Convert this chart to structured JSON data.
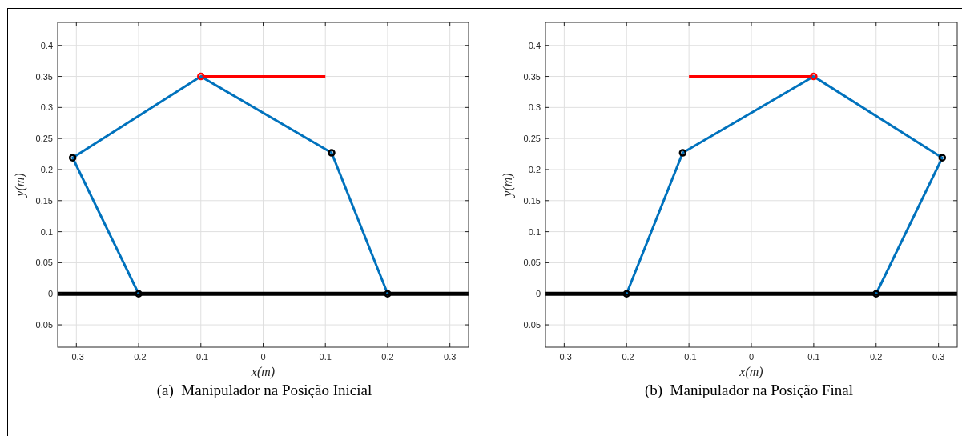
{
  "chart_data": [
    {
      "type": "line",
      "xlabel": "x(m)",
      "ylabel": "y(m)",
      "xlim": [
        -0.33,
        0.33
      ],
      "ylim": [
        -0.086,
        0.437
      ],
      "xticks": [
        -0.3,
        -0.2,
        -0.1,
        0,
        0.1,
        0.2,
        0.3
      ],
      "yticks": [
        -0.05,
        0,
        0.05,
        0.1,
        0.15,
        0.2,
        0.25,
        0.3,
        0.35,
        0.4
      ],
      "grid": true,
      "annotations": [
        "(a)  Manipulador na Posição Inicial"
      ],
      "series": [
        {
          "color": "#000000",
          "x": [
            -0.33,
            0.33
          ],
          "values": [
            0,
            0
          ]
        },
        {
          "color": "#ff0000",
          "x": [
            -0.1,
            0.1
          ],
          "values": [
            0.35,
            0.35
          ]
        },
        {
          "color": "#0072bd",
          "x": [
            -0.2,
            -0.306,
            -0.1,
            0.11,
            0.2
          ],
          "values": [
            0,
            0.219,
            0.35,
            0.227,
            0
          ]
        },
        {
          "type": "scatter",
          "color": "#000000",
          "marker": "circle",
          "x": [
            -0.2,
            -0.306,
            0.11,
            0.2
          ],
          "values": [
            0,
            0.219,
            0.227,
            0
          ]
        },
        {
          "type": "scatter",
          "color": "#ff0000",
          "marker": "circle",
          "x": [
            -0.1
          ],
          "values": [
            0.35
          ]
        }
      ]
    },
    {
      "type": "line",
      "xlabel": "x(m)",
      "ylabel": "y(m)",
      "xlim": [
        -0.33,
        0.33
      ],
      "ylim": [
        -0.086,
        0.437
      ],
      "xticks": [
        -0.3,
        -0.2,
        -0.1,
        0,
        0.1,
        0.2,
        0.3
      ],
      "yticks": [
        -0.05,
        0,
        0.05,
        0.1,
        0.15,
        0.2,
        0.25,
        0.3,
        0.35,
        0.4
      ],
      "grid": true,
      "annotations": [
        "(b)  Manipulador na Posição Final"
      ],
      "series": [
        {
          "color": "#000000",
          "x": [
            -0.33,
            0.33
          ],
          "values": [
            0,
            0
          ]
        },
        {
          "color": "#ff0000",
          "x": [
            -0.1,
            0.1
          ],
          "values": [
            0.35,
            0.35
          ]
        },
        {
          "color": "#0072bd",
          "x": [
            -0.2,
            -0.11,
            0.1,
            0.306,
            0.2
          ],
          "values": [
            0,
            0.227,
            0.35,
            0.219,
            0
          ]
        },
        {
          "type": "scatter",
          "color": "#000000",
          "marker": "circle",
          "x": [
            -0.2,
            -0.11,
            0.306,
            0.2
          ],
          "values": [
            0,
            0.227,
            0.219,
            0
          ]
        },
        {
          "type": "scatter",
          "color": "#ff0000",
          "marker": "circle",
          "x": [
            0.1
          ],
          "values": [
            0.35
          ]
        }
      ]
    }
  ]
}
